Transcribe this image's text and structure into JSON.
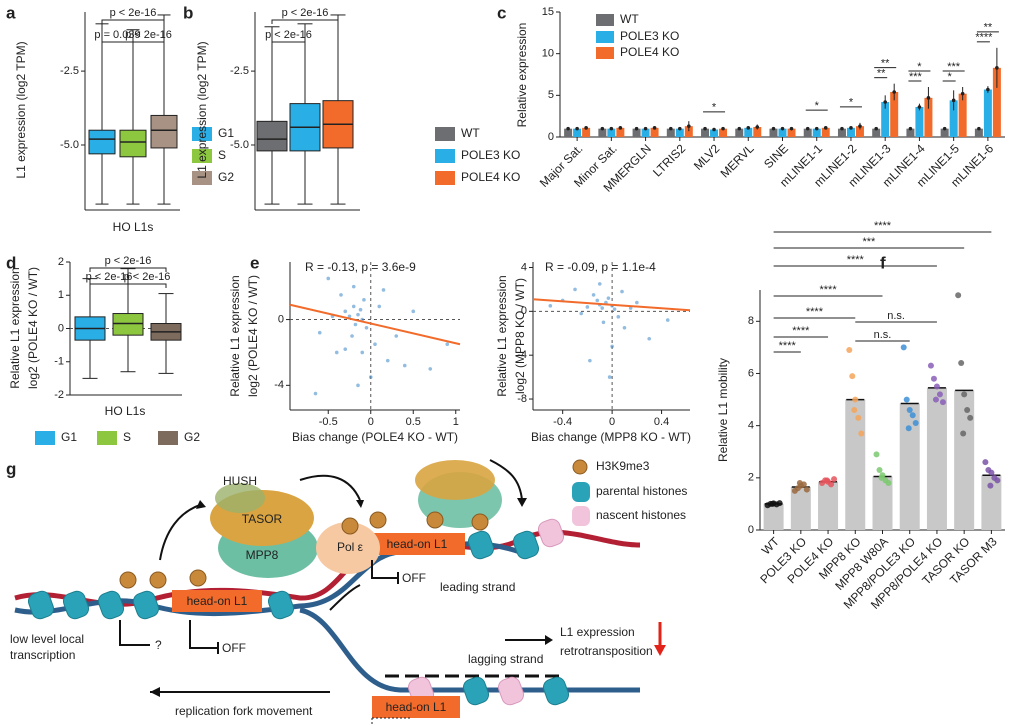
{
  "chart_data": [
    {
      "type": "box",
      "panel": "a",
      "ylabel": "L1 expression (log2 TPM)",
      "xlabel": "HO L1s",
      "categories": [
        "G1",
        "S",
        "G2"
      ],
      "colors": [
        "#29aee6",
        "#8dc63f",
        "#a89283"
      ],
      "boxes": [
        {
          "whislo": -7.0,
          "q1": -5.3,
          "med": -4.8,
          "q3": -4.5,
          "whishi": -0.9
        },
        {
          "whislo": -7.0,
          "q1": -5.4,
          "med": -4.9,
          "q3": -4.5,
          "whishi": -1.1
        },
        {
          "whislo": -7.0,
          "q1": -5.1,
          "med": -4.5,
          "q3": -4.0,
          "whishi": -0.6
        }
      ],
      "ylim": [
        -7.2,
        -0.5
      ],
      "yticks": [
        -2.5,
        {
          "value": -5,
          "label": "-5.0"
        }
      ],
      "comparisons": [
        "p < 2e-16",
        "p = 0.039",
        "p < 2e-16"
      ],
      "legend": "right"
    },
    {
      "type": "box",
      "panel": "b",
      "ylabel": "L1 expression (log2 TPM)",
      "xlabel": null,
      "categories": [
        "WT",
        "POLE3 KO",
        "POLE4 KO"
      ],
      "colors": [
        "#6d6e71",
        "#29aee6",
        "#f26b2a"
      ],
      "boxes": [
        {
          "whislo": -7.0,
          "q1": -5.2,
          "med": -4.8,
          "q3": -4.2,
          "whishi": -1.0
        },
        {
          "whislo": -7.0,
          "q1": -5.2,
          "med": -4.4,
          "q3": -3.6,
          "whishi": -0.9
        },
        {
          "whislo": -7.0,
          "q1": -5.1,
          "med": -4.3,
          "q3": -3.5,
          "whishi": -0.6
        }
      ],
      "ylim": [
        -7.2,
        -0.5
      ],
      "yticks": [
        -2.5,
        {
          "value": -5,
          "label": "-5.0"
        }
      ],
      "comparisons": [
        "p < 2e-16",
        "p < 2e-16"
      ],
      "legend": "right"
    },
    {
      "type": "bar",
      "panel": "c",
      "ylabel": "Relative expression",
      "categories": [
        "Major Sat.",
        "Minor Sat.",
        "MMERGLN",
        "LTRIS2",
        "MLV2",
        "MERVL",
        "SINE",
        "mLINE1-1",
        "mLINE1-2",
        "mLINE1-3",
        "mLINE1-4",
        "mLINE1-5",
        "mLINE1-6"
      ],
      "series": [
        {
          "name": "WT",
          "color": "#6d6e71",
          "values": [
            1,
            1,
            1,
            1,
            1,
            1,
            1,
            1,
            1,
            1,
            1,
            1,
            1
          ],
          "errors": [
            0.05,
            0.08,
            0.06,
            0.05,
            0.05,
            0.07,
            0.05,
            0.06,
            0.05,
            0.06,
            0.06,
            0.05,
            0.06
          ]
        },
        {
          "name": "POLE3 KO",
          "color": "#29aee6",
          "values": [
            1.0,
            1.0,
            1.0,
            1.0,
            0.9,
            1.1,
            1.0,
            1.0,
            1.1,
            4.2,
            3.6,
            4.4,
            5.7
          ],
          "errors": [
            0.1,
            0.1,
            0.1,
            0.1,
            0.1,
            0.2,
            0.1,
            0.1,
            0.1,
            0.8,
            0.4,
            1.2,
            0.4
          ]
        },
        {
          "name": "POLE4 KO",
          "color": "#f26b2a",
          "values": [
            1.1,
            1.1,
            1.1,
            1.3,
            1.0,
            1.2,
            1.0,
            1.1,
            1.3,
            5.4,
            4.7,
            5.2,
            8.3
          ],
          "errors": [
            0.1,
            0.2,
            0.2,
            0.6,
            0.1,
            0.3,
            0.2,
            0.2,
            0.4,
            1.0,
            1.3,
            0.8,
            2.4
          ]
        }
      ],
      "significance_upper": [
        null,
        null,
        null,
        null,
        "*",
        null,
        null,
        "*",
        "*",
        "**",
        "*",
        "***",
        "**"
      ],
      "significance_lower": [
        null,
        null,
        null,
        null,
        null,
        null,
        null,
        null,
        null,
        "**",
        "***",
        "*",
        "****"
      ],
      "ylim": [
        0,
        15
      ],
      "yticks": [
        0,
        5,
        10,
        15
      ],
      "legend": "upper left"
    },
    {
      "type": "box",
      "panel": "d",
      "ylabel": [
        "Relative L1 expression",
        "log2 (POLE4 KO / WT)"
      ],
      "xlabel": "HO L1s",
      "categories": [
        "G1",
        "S",
        "G2"
      ],
      "colors": [
        "#29aee6",
        "#8dc63f",
        "#7d6b5d"
      ],
      "boxes": [
        {
          "whislo": -1.5,
          "q1": -0.35,
          "med": 0,
          "q3": 0.35,
          "whishi": 1.5
        },
        {
          "whislo": -1.3,
          "q1": -0.2,
          "med": 0.15,
          "q3": 0.45,
          "whishi": 1.8
        },
        {
          "whislo": -1.35,
          "q1": -0.35,
          "med": -0.1,
          "q3": 0.15,
          "whishi": 1.05
        }
      ],
      "ylim": [
        -2,
        2
      ],
      "yticks": [
        -2,
        -1,
        0,
        1,
        2
      ],
      "comparisons": [
        "p < 2e-16",
        "p < 2e-16",
        "p < 2e-16"
      ],
      "legend": "bottom"
    },
    {
      "type": "scatter",
      "panel": "e",
      "annotation": "R = -0.13, p = 3.6e-9",
      "ylabel": [
        "Relative L1 expression",
        "log2 (POLE4 KO / WT)"
      ],
      "xlabel": "Bias change (POLE4 KO - WT)",
      "color": "#4a8fcb",
      "fit_color": "#f26b2a",
      "x": [
        -0.3,
        -0.25,
        -0.2,
        -0.18,
        -0.15,
        -0.12,
        -0.1,
        -0.08,
        -0.22,
        -0.05,
        -0.35,
        -0.4,
        -0.5,
        -0.6,
        0.05,
        0.1,
        0.2,
        0.3,
        0.5,
        0.7,
        -0.15,
        -0.2,
        -0.1,
        0.0,
        -0.3,
        -0.45,
        0.15,
        -0.65,
        0.4,
        0.9
      ],
      "y": [
        0.5,
        0.2,
        0.8,
        -0.3,
        0.3,
        0.6,
        0,
        1.2,
        -1,
        -0.5,
        1.5,
        -2,
        2.5,
        -0.8,
        -1.5,
        0.8,
        -2.5,
        -1,
        0.5,
        -3,
        -4,
        2,
        -2,
        -3.5,
        -1.8,
        0.2,
        1.8,
        -4.5,
        -2.8,
        -1.5
      ],
      "fit_x": [
        -0.95,
        1.05
      ],
      "fit_y": [
        0.9,
        -1.5
      ],
      "xlim": [
        -0.95,
        1.05
      ],
      "xticks": [
        -0.5,
        0,
        0.5,
        1
      ],
      "ylim": [
        -5.5,
        3.5
      ],
      "yticks": [
        -4,
        0
      ]
    },
    {
      "type": "scatter",
      "panel": null,
      "annotation": "R = -0.09, p = 1.1e-4",
      "ylabel": [
        "Relative L1 expression",
        "log2 (MPP8 KO / WT)"
      ],
      "xlabel": "Bias change (MPP8 KO - WT)",
      "color": "#4a8fcb",
      "fit_color": "#f26b2a",
      "x": [
        -0.1,
        -0.05,
        -0.08,
        -0.12,
        0,
        0.02,
        -0.15,
        -0.2,
        0.05,
        -0.03,
        -0.3,
        0.1,
        -0.25,
        0.2,
        -0.4,
        0.3,
        -0.07,
        -0.1,
        0.0,
        -0.5,
        0.45,
        -0.18,
        0.08,
        -0.02,
        0.15
      ],
      "y": [
        0.6,
        0.8,
        0.3,
        1.0,
        0.5,
        0.2,
        1.5,
        0.4,
        -0.5,
        1.2,
        2.0,
        -1.5,
        -0.2,
        0.8,
        1.0,
        -2.5,
        -1.0,
        2.5,
        -3.2,
        0.5,
        -0.8,
        -4.5,
        1.8,
        -6,
        0.3
      ],
      "fit_x": [
        -0.64,
        0.63
      ],
      "fit_y": [
        1.1,
        0.1
      ],
      "xlim": [
        -0.64,
        0.63
      ],
      "xticks": [
        -0.4,
        0,
        0.4
      ],
      "ylim": [
        -9,
        4.5
      ],
      "yticks": [
        -8,
        -4,
        0,
        4
      ]
    },
    {
      "type": "dotbar",
      "panel": "f",
      "ylabel": "Relative L1 mobility",
      "categories": [
        "WT",
        "POLE3 KO",
        "POLE4 KO",
        "MPP8 KO",
        "MPP8 W80A",
        "MPP8/POLE3 KO",
        "MPP8/POLE4 KO",
        "TASOR KO",
        "TASOR M3"
      ],
      "values": [
        1,
        1.65,
        1.85,
        5.0,
        2.05,
        4.85,
        5.45,
        5.35,
        2.1
      ],
      "bar_color": "#c8c8c8",
      "colors": [
        "#111111",
        "#9b6a3f",
        "#e5545c",
        "#f5a55a",
        "#7bc96f",
        "#3c8fd6",
        "#8a5fb8",
        "#666666",
        "#7a54a8"
      ],
      "points": [
        [
          0.95,
          1,
          1.02,
          0.98,
          1.03,
          1.0
        ],
        [
          1.5,
          1.6,
          1.7,
          1.75,
          1.55,
          1.8
        ],
        [
          1.8,
          1.9,
          1.85,
          1.75,
          1.95,
          1.9
        ],
        [
          6.9,
          5.9,
          5.0,
          4.3,
          3.7,
          4.6
        ],
        [
          2.9,
          2.3,
          2.1,
          1.9,
          1.8,
          2.0
        ],
        [
          7.0,
          5.0,
          4.6,
          4.4,
          4.1,
          3.9
        ],
        [
          6.3,
          5.8,
          5.5,
          5.2,
          4.9,
          5.0
        ],
        [
          9.0,
          6.4,
          5.2,
          4.6,
          4.3,
          3.7
        ],
        [
          2.6,
          2.3,
          2.2,
          2.0,
          1.9,
          1.7
        ]
      ],
      "ylim": [
        0,
        9.2
      ],
      "yticks": [
        0,
        2,
        4,
        6,
        8
      ],
      "comparisons": [
        "****",
        "***",
        "****",
        "****",
        "****",
        "****",
        "****",
        "n.s.",
        "n.s."
      ]
    }
  ],
  "diagram": {
    "panel": "g",
    "hush": "HUSH",
    "tasor": "TASOR",
    "mpp8": "MPP8",
    "pol": "Pol ε",
    "head_on": [
      "head-on L1",
      "head-on L1",
      "head-on L1"
    ],
    "off": [
      "OFF",
      "OFF"
    ],
    "leading": "leading strand",
    "lagging": "lagging strand",
    "low_level": [
      "low level local",
      "transcription"
    ],
    "question": "?",
    "fork": "replication fork movement",
    "legend": [
      "H3K9me3",
      "parental histones",
      "nascent histones"
    ],
    "outcome": [
      "L1 expression",
      "retrotransposition"
    ]
  }
}
